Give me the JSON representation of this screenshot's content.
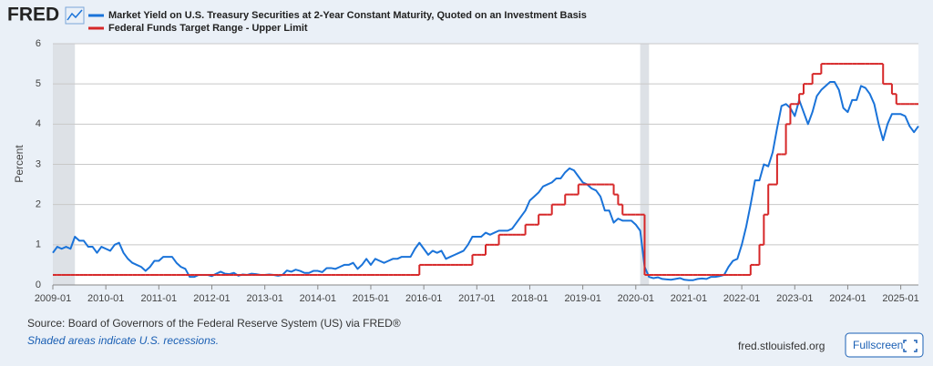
{
  "logo": "FRED",
  "source": "Source: Board of Governors of the Federal Reserve System (US) via FRED®",
  "note": "Shaded areas indicate U.S. recessions.",
  "site": "fred.stlouisfed.org",
  "button": "Fullscreen",
  "chart_data": {
    "type": "line",
    "ylabel": "Percent",
    "grid": true,
    "xlim": [
      "2009-01",
      "2025-05"
    ],
    "ylim": [
      0,
      6
    ],
    "yticks": [
      0,
      1,
      2,
      3,
      4,
      5,
      6
    ],
    "xticks": [
      "2009-01",
      "2010-01",
      "2011-01",
      "2012-01",
      "2013-01",
      "2014-01",
      "2015-01",
      "2016-01",
      "2017-01",
      "2018-01",
      "2019-01",
      "2020-01",
      "2021-01",
      "2022-01",
      "2023-01",
      "2024-01",
      "2025-01"
    ],
    "recessions": [
      [
        "2009-01",
        "2009-06"
      ],
      [
        "2020-02",
        "2020-04"
      ]
    ],
    "x": [
      "2009-01",
      "2009-02",
      "2009-03",
      "2009-04",
      "2009-05",
      "2009-06",
      "2009-07",
      "2009-08",
      "2009-09",
      "2009-10",
      "2009-11",
      "2009-12",
      "2010-01",
      "2010-02",
      "2010-03",
      "2010-04",
      "2010-05",
      "2010-06",
      "2010-07",
      "2010-08",
      "2010-09",
      "2010-10",
      "2010-11",
      "2010-12",
      "2011-01",
      "2011-02",
      "2011-03",
      "2011-04",
      "2011-05",
      "2011-06",
      "2011-07",
      "2011-08",
      "2011-09",
      "2011-10",
      "2011-11",
      "2011-12",
      "2012-01",
      "2012-02",
      "2012-03",
      "2012-04",
      "2012-05",
      "2012-06",
      "2012-07",
      "2012-08",
      "2012-09",
      "2012-10",
      "2012-11",
      "2012-12",
      "2013-01",
      "2013-02",
      "2013-03",
      "2013-04",
      "2013-05",
      "2013-06",
      "2013-07",
      "2013-08",
      "2013-09",
      "2013-10",
      "2013-11",
      "2013-12",
      "2014-01",
      "2014-02",
      "2014-03",
      "2014-04",
      "2014-05",
      "2014-06",
      "2014-07",
      "2014-08",
      "2014-09",
      "2014-10",
      "2014-11",
      "2014-12",
      "2015-01",
      "2015-02",
      "2015-03",
      "2015-04",
      "2015-05",
      "2015-06",
      "2015-07",
      "2015-08",
      "2015-09",
      "2015-10",
      "2015-11",
      "2015-12",
      "2016-01",
      "2016-02",
      "2016-03",
      "2016-04",
      "2016-05",
      "2016-06",
      "2016-07",
      "2016-08",
      "2016-09",
      "2016-10",
      "2016-11",
      "2016-12",
      "2017-01",
      "2017-02",
      "2017-03",
      "2017-04",
      "2017-05",
      "2017-06",
      "2017-07",
      "2017-08",
      "2017-09",
      "2017-10",
      "2017-11",
      "2017-12",
      "2018-01",
      "2018-02",
      "2018-03",
      "2018-04",
      "2018-05",
      "2018-06",
      "2018-07",
      "2018-08",
      "2018-09",
      "2018-10",
      "2018-11",
      "2018-12",
      "2019-01",
      "2019-02",
      "2019-03",
      "2019-04",
      "2019-05",
      "2019-06",
      "2019-07",
      "2019-08",
      "2019-09",
      "2019-10",
      "2019-11",
      "2019-12",
      "2020-01",
      "2020-02",
      "2020-03",
      "2020-04",
      "2020-05",
      "2020-06",
      "2020-07",
      "2020-08",
      "2020-09",
      "2020-10",
      "2020-11",
      "2020-12",
      "2021-01",
      "2021-02",
      "2021-03",
      "2021-04",
      "2021-05",
      "2021-06",
      "2021-07",
      "2021-08",
      "2021-09",
      "2021-10",
      "2021-11",
      "2021-12",
      "2022-01",
      "2022-02",
      "2022-03",
      "2022-04",
      "2022-05",
      "2022-06",
      "2022-07",
      "2022-08",
      "2022-09",
      "2022-10",
      "2022-11",
      "2022-12",
      "2023-01",
      "2023-02",
      "2023-03",
      "2023-04",
      "2023-05",
      "2023-06",
      "2023-07",
      "2023-08",
      "2023-09",
      "2023-10",
      "2023-11",
      "2023-12",
      "2024-01",
      "2024-02",
      "2024-03",
      "2024-04",
      "2024-05",
      "2024-06",
      "2024-07",
      "2024-08",
      "2024-09",
      "2024-10",
      "2024-11",
      "2024-12",
      "2025-01",
      "2025-02",
      "2025-03",
      "2025-04",
      "2025-05"
    ],
    "series": [
      {
        "name": "Market Yield on U.S. Treasury Securities at 2-Year Constant Maturity, Quoted on an Investment Basis",
        "color": "#1a73d9",
        "step": false,
        "values": [
          0.8,
          0.95,
          0.9,
          0.95,
          0.9,
          1.2,
          1.1,
          1.1,
          0.95,
          0.95,
          0.8,
          0.95,
          0.9,
          0.85,
          1.0,
          1.05,
          0.8,
          0.65,
          0.55,
          0.5,
          0.45,
          0.35,
          0.45,
          0.6,
          0.6,
          0.7,
          0.7,
          0.7,
          0.55,
          0.45,
          0.4,
          0.2,
          0.2,
          0.25,
          0.25,
          0.25,
          0.22,
          0.28,
          0.33,
          0.28,
          0.27,
          0.3,
          0.23,
          0.26,
          0.25,
          0.28,
          0.27,
          0.25,
          0.25,
          0.26,
          0.25,
          0.23,
          0.25,
          0.36,
          0.33,
          0.38,
          0.35,
          0.3,
          0.3,
          0.35,
          0.35,
          0.32,
          0.42,
          0.42,
          0.4,
          0.45,
          0.5,
          0.5,
          0.55,
          0.4,
          0.5,
          0.65,
          0.5,
          0.65,
          0.6,
          0.55,
          0.6,
          0.65,
          0.65,
          0.7,
          0.7,
          0.7,
          0.9,
          1.05,
          0.9,
          0.75,
          0.85,
          0.8,
          0.85,
          0.65,
          0.7,
          0.75,
          0.8,
          0.85,
          1.0,
          1.2,
          1.2,
          1.2,
          1.3,
          1.25,
          1.3,
          1.35,
          1.35,
          1.35,
          1.4,
          1.55,
          1.7,
          1.85,
          2.1,
          2.2,
          2.3,
          2.45,
          2.5,
          2.55,
          2.65,
          2.65,
          2.8,
          2.9,
          2.85,
          2.7,
          2.55,
          2.5,
          2.4,
          2.35,
          2.2,
          1.85,
          1.85,
          1.55,
          1.65,
          1.6,
          1.6,
          1.6,
          1.5,
          1.35,
          0.45,
          0.2,
          0.17,
          0.19,
          0.15,
          0.14,
          0.13,
          0.15,
          0.17,
          0.13,
          0.12,
          0.12,
          0.15,
          0.16,
          0.15,
          0.2,
          0.2,
          0.22,
          0.25,
          0.45,
          0.6,
          0.65,
          1.0,
          1.45,
          2.0,
          2.6,
          2.6,
          3.0,
          2.95,
          3.3,
          3.9,
          4.45,
          4.5,
          4.4,
          4.2,
          4.6,
          4.3,
          4.0,
          4.3,
          4.7,
          4.85,
          4.95,
          5.05,
          5.05,
          4.85,
          4.4,
          4.3,
          4.6,
          4.6,
          4.95,
          4.9,
          4.75,
          4.5,
          4.0,
          3.6,
          4.0,
          4.25,
          4.25,
          4.25,
          4.2,
          3.95,
          3.8,
          3.95
        ]
      },
      {
        "name": "Federal Funds Target Range - Upper Limit",
        "color": "#d62728",
        "step": true,
        "values": [
          0.25,
          0.25,
          0.25,
          0.25,
          0.25,
          0.25,
          0.25,
          0.25,
          0.25,
          0.25,
          0.25,
          0.25,
          0.25,
          0.25,
          0.25,
          0.25,
          0.25,
          0.25,
          0.25,
          0.25,
          0.25,
          0.25,
          0.25,
          0.25,
          0.25,
          0.25,
          0.25,
          0.25,
          0.25,
          0.25,
          0.25,
          0.25,
          0.25,
          0.25,
          0.25,
          0.25,
          0.25,
          0.25,
          0.25,
          0.25,
          0.25,
          0.25,
          0.25,
          0.25,
          0.25,
          0.25,
          0.25,
          0.25,
          0.25,
          0.25,
          0.25,
          0.25,
          0.25,
          0.25,
          0.25,
          0.25,
          0.25,
          0.25,
          0.25,
          0.25,
          0.25,
          0.25,
          0.25,
          0.25,
          0.25,
          0.25,
          0.25,
          0.25,
          0.25,
          0.25,
          0.25,
          0.25,
          0.25,
          0.25,
          0.25,
          0.25,
          0.25,
          0.25,
          0.25,
          0.25,
          0.25,
          0.25,
          0.25,
          0.5,
          0.5,
          0.5,
          0.5,
          0.5,
          0.5,
          0.5,
          0.5,
          0.5,
          0.5,
          0.5,
          0.5,
          0.75,
          0.75,
          0.75,
          1.0,
          1.0,
          1.0,
          1.25,
          1.25,
          1.25,
          1.25,
          1.25,
          1.25,
          1.5,
          1.5,
          1.5,
          1.75,
          1.75,
          1.75,
          2.0,
          2.0,
          2.0,
          2.25,
          2.25,
          2.25,
          2.5,
          2.5,
          2.5,
          2.5,
          2.5,
          2.5,
          2.5,
          2.5,
          2.25,
          2.0,
          1.75,
          1.75,
          1.75,
          1.75,
          1.75,
          0.25,
          0.25,
          0.25,
          0.25,
          0.25,
          0.25,
          0.25,
          0.25,
          0.25,
          0.25,
          0.25,
          0.25,
          0.25,
          0.25,
          0.25,
          0.25,
          0.25,
          0.25,
          0.25,
          0.25,
          0.25,
          0.25,
          0.25,
          0.25,
          0.5,
          0.5,
          1.0,
          1.75,
          2.5,
          2.5,
          3.25,
          3.25,
          4.0,
          4.5,
          4.5,
          4.75,
          5.0,
          5.0,
          5.25,
          5.25,
          5.5,
          5.5,
          5.5,
          5.5,
          5.5,
          5.5,
          5.5,
          5.5,
          5.5,
          5.5,
          5.5,
          5.5,
          5.5,
          5.5,
          5.0,
          5.0,
          4.75,
          4.5,
          4.5,
          4.5,
          4.5,
          4.5,
          4.5
        ]
      }
    ]
  }
}
